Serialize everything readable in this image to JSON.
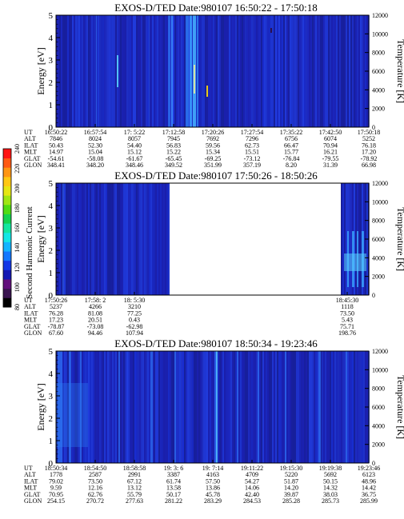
{
  "colorbar": {
    "label": "Second Harmonic Current",
    "ticks": [
      "240",
      "220",
      "200",
      "180",
      "160",
      "140",
      "120",
      "100",
      "80"
    ],
    "colors": [
      "#000000",
      "#3a1450",
      "#62107c",
      "#1418b4",
      "#1438e6",
      "#1478ff",
      "#14b4ff",
      "#14e6e6",
      "#14e6a0",
      "#14d250",
      "#50dc14",
      "#a0e614",
      "#e6e614",
      "#ffc814",
      "#ff9614",
      "#ff5a14",
      "#ff1414"
    ]
  },
  "panels": [
    {
      "title": "EXOS-D/TED   Date:980107   16:50:22 - 17:50:18",
      "ylabel": "Energy [eV]",
      "y2label": "Temperature [K]",
      "yticks": [
        "0",
        "1",
        "2",
        "3",
        "4",
        "5"
      ],
      "y2ticks": [
        "0",
        "2000",
        "4000",
        "6000",
        "8000",
        "10000",
        "12000"
      ],
      "row_labels": [
        "UT",
        "ALT",
        "ILAT",
        "MLT",
        "GLAT",
        "GLON"
      ],
      "columns": [
        [
          "16:50:22",
          "7846",
          "50.43",
          "14.97",
          "-54.61",
          "348.41"
        ],
        [
          "16:57:54",
          "8024",
          "52.30",
          "15.04",
          "-58.08",
          "348.20"
        ],
        [
          "17: 5:22",
          "8057",
          "54.40",
          "15.12",
          "-61.67",
          "348.46"
        ],
        [
          "17:12:58",
          "7945",
          "56.83",
          "15.22",
          "-65.45",
          "349.52"
        ],
        [
          "17:20:26",
          "7692",
          "59.56",
          "15.34",
          "-69.25",
          "351.99"
        ],
        [
          "17:27:54",
          "7296",
          "62.73",
          "15.51",
          "-73.12",
          "357.19"
        ],
        [
          "17:35:22",
          "6756",
          "66.47",
          "15.77",
          "-76.84",
          "8.20"
        ],
        [
          "17:42:50",
          "6074",
          "70.94",
          "16.21",
          "-79.55",
          "31.39"
        ],
        [
          "17:50:18",
          "5252",
          "76.18",
          "17.20",
          "-78.92",
          "66.98"
        ]
      ]
    },
    {
      "title": "EXOS-D/TED   Date:980107   17:50:26 - 18:50:26",
      "ylabel": "Energy [eV]",
      "y2label": "Temperature [K]",
      "yticks": [
        "0",
        "1",
        "2",
        "3",
        "4",
        "5"
      ],
      "y2ticks": [
        "0",
        "2000",
        "4000",
        "6000",
        "8000",
        "10000",
        "12000"
      ],
      "row_labels": [
        "UT",
        "ALT",
        "ILAT",
        "MLT",
        "GLAT",
        "GLON"
      ],
      "columns": [
        [
          "17:50:26",
          "5237",
          "76.28",
          "17.23",
          "-78.87",
          "67.60"
        ],
        [
          "17:58: 2",
          "4266",
          "81.08",
          "20.51",
          "-73.08",
          "94.46"
        ],
        [
          "18: 5:30",
          "3210",
          "77.25",
          "0.43",
          "-62.98",
          "107.94"
        ],
        [
          "18:45:30",
          "1118",
          "73.50",
          "5.43",
          "75.71",
          "198.76"
        ]
      ]
    },
    {
      "title": "EXOS-D/TED   Date:980107   18:50:34 - 19:23:46",
      "ylabel": "Energy [eV]",
      "y2label": "Temperature [K]",
      "yticks": [
        "0",
        "1",
        "2",
        "3",
        "4",
        "5"
      ],
      "y2ticks": [
        "0",
        "2000",
        "4000",
        "6000",
        "8000",
        "10000",
        "12000"
      ],
      "row_labels": [
        "UT",
        "ALT",
        "ILAT",
        "MLT",
        "GLAT",
        "GLON"
      ],
      "columns": [
        [
          "18:50:34",
          "1778",
          "79.02",
          "9.59",
          "70.95",
          "254.15"
        ],
        [
          "18:54:50",
          "2587",
          "73.50",
          "12.16",
          "62.76",
          "270.72"
        ],
        [
          "18:58:58",
          "2991",
          "67.12",
          "13.12",
          "55.79",
          "277.63"
        ],
        [
          "19: 3: 6",
          "3387",
          "61.74",
          "13.58",
          "50.17",
          "281.22"
        ],
        [
          "19: 7:14",
          "4163",
          "57.50",
          "13.86",
          "45.78",
          "283.29"
        ],
        [
          "19:11:22",
          "4709",
          "54.27",
          "14.06",
          "42.40",
          "284.53"
        ],
        [
          "19:15:30",
          "5220",
          "51.87",
          "14.20",
          "39.87",
          "285.28"
        ],
        [
          "19:19:38",
          "5692",
          "50.15",
          "14.32",
          "38.03",
          "285.73"
        ],
        [
          "19:23:46",
          "6123",
          "48.96",
          "14.42",
          "36.75",
          "285.99"
        ]
      ]
    }
  ]
}
